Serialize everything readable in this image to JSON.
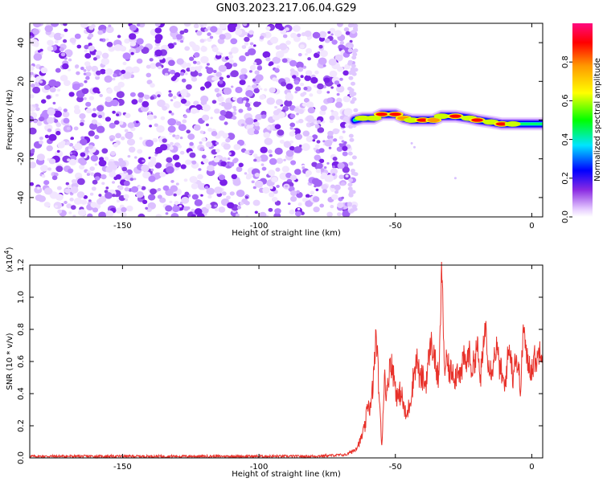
{
  "title": "GN03.2023.217.06.04.G29",
  "chart_data": [
    {
      "type": "heatmap",
      "xlabel": "Height of straight line (km)",
      "ylabel": "Frequency (Hz)",
      "xlim": [
        -184,
        4
      ],
      "ylim": [
        -50,
        50
      ],
      "xticks": [
        -150,
        -100,
        -50,
        0
      ],
      "yticks": [
        -40,
        -20,
        0,
        20,
        40
      ],
      "noise_region_x": [
        -184,
        -65
      ],
      "signal_track": [
        {
          "x": -65,
          "y": 0,
          "amp": 0.25
        },
        {
          "x": -62,
          "y": 1,
          "amp": 0.45
        },
        {
          "x": -58,
          "y": 1,
          "amp": 0.5
        },
        {
          "x": -55,
          "y": 3,
          "amp": 0.9
        },
        {
          "x": -50,
          "y": 3,
          "amp": 0.9
        },
        {
          "x": -47,
          "y": 1,
          "amp": 0.7
        },
        {
          "x": -44,
          "y": 0,
          "amp": 0.55
        },
        {
          "x": -40,
          "y": 0,
          "amp": 0.9
        },
        {
          "x": -36,
          "y": 0,
          "amp": 0.7
        },
        {
          "x": -33,
          "y": 2,
          "amp": 0.55
        },
        {
          "x": -28,
          "y": 2,
          "amp": 0.9
        },
        {
          "x": -23,
          "y": 1,
          "amp": 0.6
        },
        {
          "x": -20,
          "y": 0,
          "amp": 0.9
        },
        {
          "x": -15,
          "y": -1,
          "amp": 0.6
        },
        {
          "x": -11,
          "y": -2,
          "amp": 0.9
        },
        {
          "x": -7,
          "y": -2,
          "amp": 0.5
        },
        {
          "x": -3,
          "y": -2,
          "amp": 0.35
        },
        {
          "x": 0,
          "y": -2,
          "amp": 0.3
        },
        {
          "x": 4,
          "y": -2,
          "amp": 0.25
        }
      ],
      "colorbar": {
        "label": "Normalized spectral amplitude",
        "ticks": [
          0.0,
          0.2,
          0.4,
          0.6,
          0.8
        ],
        "tick_labels": [
          "0.0",
          "0.2",
          "0.4",
          "0.6",
          "0.8"
        ],
        "range": [
          0,
          1
        ]
      }
    },
    {
      "type": "line",
      "xlabel": "Height of straight line (km)",
      "ylabel": "SNR (10 * v/v)",
      "multiplier_label": "(x10",
      "multiplier_exp": "4",
      "xlim": [
        -184,
        4
      ],
      "ylim": [
        0,
        1.2
      ],
      "xticks": [
        -150,
        -100,
        -50,
        0
      ],
      "yticks": [
        0.0,
        0.2,
        0.4,
        0.6,
        0.8,
        1.0,
        1.2
      ],
      "ytick_labels": [
        "0.0",
        "0.2",
        "0.4",
        "0.6",
        "0.8",
        "1.0",
        "1.2"
      ],
      "color": "#e8312a",
      "series": [
        {
          "x": [
            -184,
            -150,
            -120,
            -100,
            -80,
            -68,
            -65,
            -63,
            -61,
            -60,
            -59,
            -58,
            -57,
            -56,
            -55,
            -54,
            -53,
            -52,
            -51,
            -50,
            -49,
            -48,
            -47,
            -46,
            -45,
            -44,
            -43,
            -42,
            -41,
            -40,
            -39,
            -38,
            -37,
            -36,
            -35,
            -34,
            -33,
            -32,
            -31,
            -30,
            -29,
            -28,
            -27,
            -26,
            -25,
            -24,
            -23,
            -22,
            -21,
            -20,
            -19,
            -18,
            -17,
            -16,
            -15,
            -14,
            -13,
            -12,
            -11,
            -10,
            -9,
            -8,
            -7,
            -6,
            -5,
            -4,
            -3,
            -2,
            -1,
            0,
            1,
            2,
            3,
            4
          ],
          "values": [
            0.01,
            0.01,
            0.01,
            0.01,
            0.01,
            0.02,
            0.05,
            0.1,
            0.2,
            0.35,
            0.3,
            0.5,
            0.78,
            0.42,
            0.06,
            0.52,
            0.38,
            0.62,
            0.55,
            0.45,
            0.36,
            0.42,
            0.32,
            0.25,
            0.32,
            0.42,
            0.55,
            0.62,
            0.48,
            0.5,
            0.45,
            0.58,
            0.72,
            0.66,
            0.55,
            0.48,
            1.2,
            0.55,
            0.6,
            0.52,
            0.56,
            0.5,
            0.58,
            0.5,
            0.62,
            0.58,
            0.66,
            0.55,
            0.6,
            0.72,
            0.48,
            0.62,
            0.85,
            0.62,
            0.55,
            0.6,
            0.7,
            0.58,
            0.52,
            0.42,
            0.6,
            0.7,
            0.5,
            0.65,
            0.55,
            0.45,
            0.84,
            0.62,
            0.58,
            0.55,
            0.62,
            0.6,
            0.7,
            0.65
          ]
        }
      ]
    }
  ]
}
